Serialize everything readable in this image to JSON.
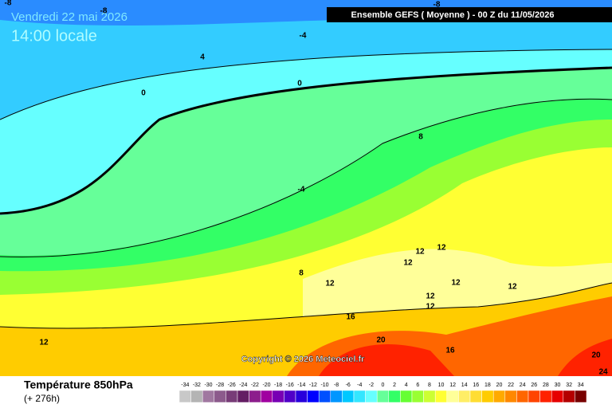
{
  "header": {
    "date": "Vendredi 22 mai 2026",
    "time": "14:00 locale",
    "run": "Ensemble GEFS  ( Moyenne )  -  00 Z du 11/05/2026"
  },
  "map": {
    "copyright": "Copyright © 2026 Meteociel.fr",
    "contour_labels": [
      -8,
      -8,
      -8,
      -4,
      4,
      0,
      0,
      8,
      -4,
      8,
      12,
      12,
      12,
      12,
      12,
      12,
      12,
      12,
      16,
      12,
      20,
      16,
      20,
      24
    ]
  },
  "footer": {
    "title": "Température 850hPa",
    "lead": "(+ 276h)"
  },
  "legend": {
    "values": [
      -34,
      -32,
      -30,
      -28,
      -26,
      -24,
      -22,
      -20,
      -18,
      -16,
      -14,
      -12,
      -10,
      -8,
      -6,
      -4,
      -2,
      0,
      2,
      4,
      6,
      8,
      10,
      12,
      14,
      16,
      18,
      20,
      22,
      24,
      26,
      28,
      30,
      32,
      34
    ],
    "colors": [
      "#c8c8c8",
      "#b4b4b4",
      "#a078a0",
      "#8c5a8c",
      "#783c78",
      "#641e64",
      "#8c1e8c",
      "#a000a0",
      "#7800b4",
      "#5000c8",
      "#2800dc",
      "#0000ff",
      "#0050ff",
      "#0096ff",
      "#00c8ff",
      "#33e6ff",
      "#66ffff",
      "#66ff99",
      "#33ff66",
      "#66ff33",
      "#99ff33",
      "#ccff33",
      "#ffff33",
      "#ffff99",
      "#ffee66",
      "#ffdd33",
      "#ffcc00",
      "#ffaa00",
      "#ff8800",
      "#ff6600",
      "#ff4400",
      "#ff2200",
      "#e60000",
      "#b40000",
      "#780000"
    ]
  }
}
